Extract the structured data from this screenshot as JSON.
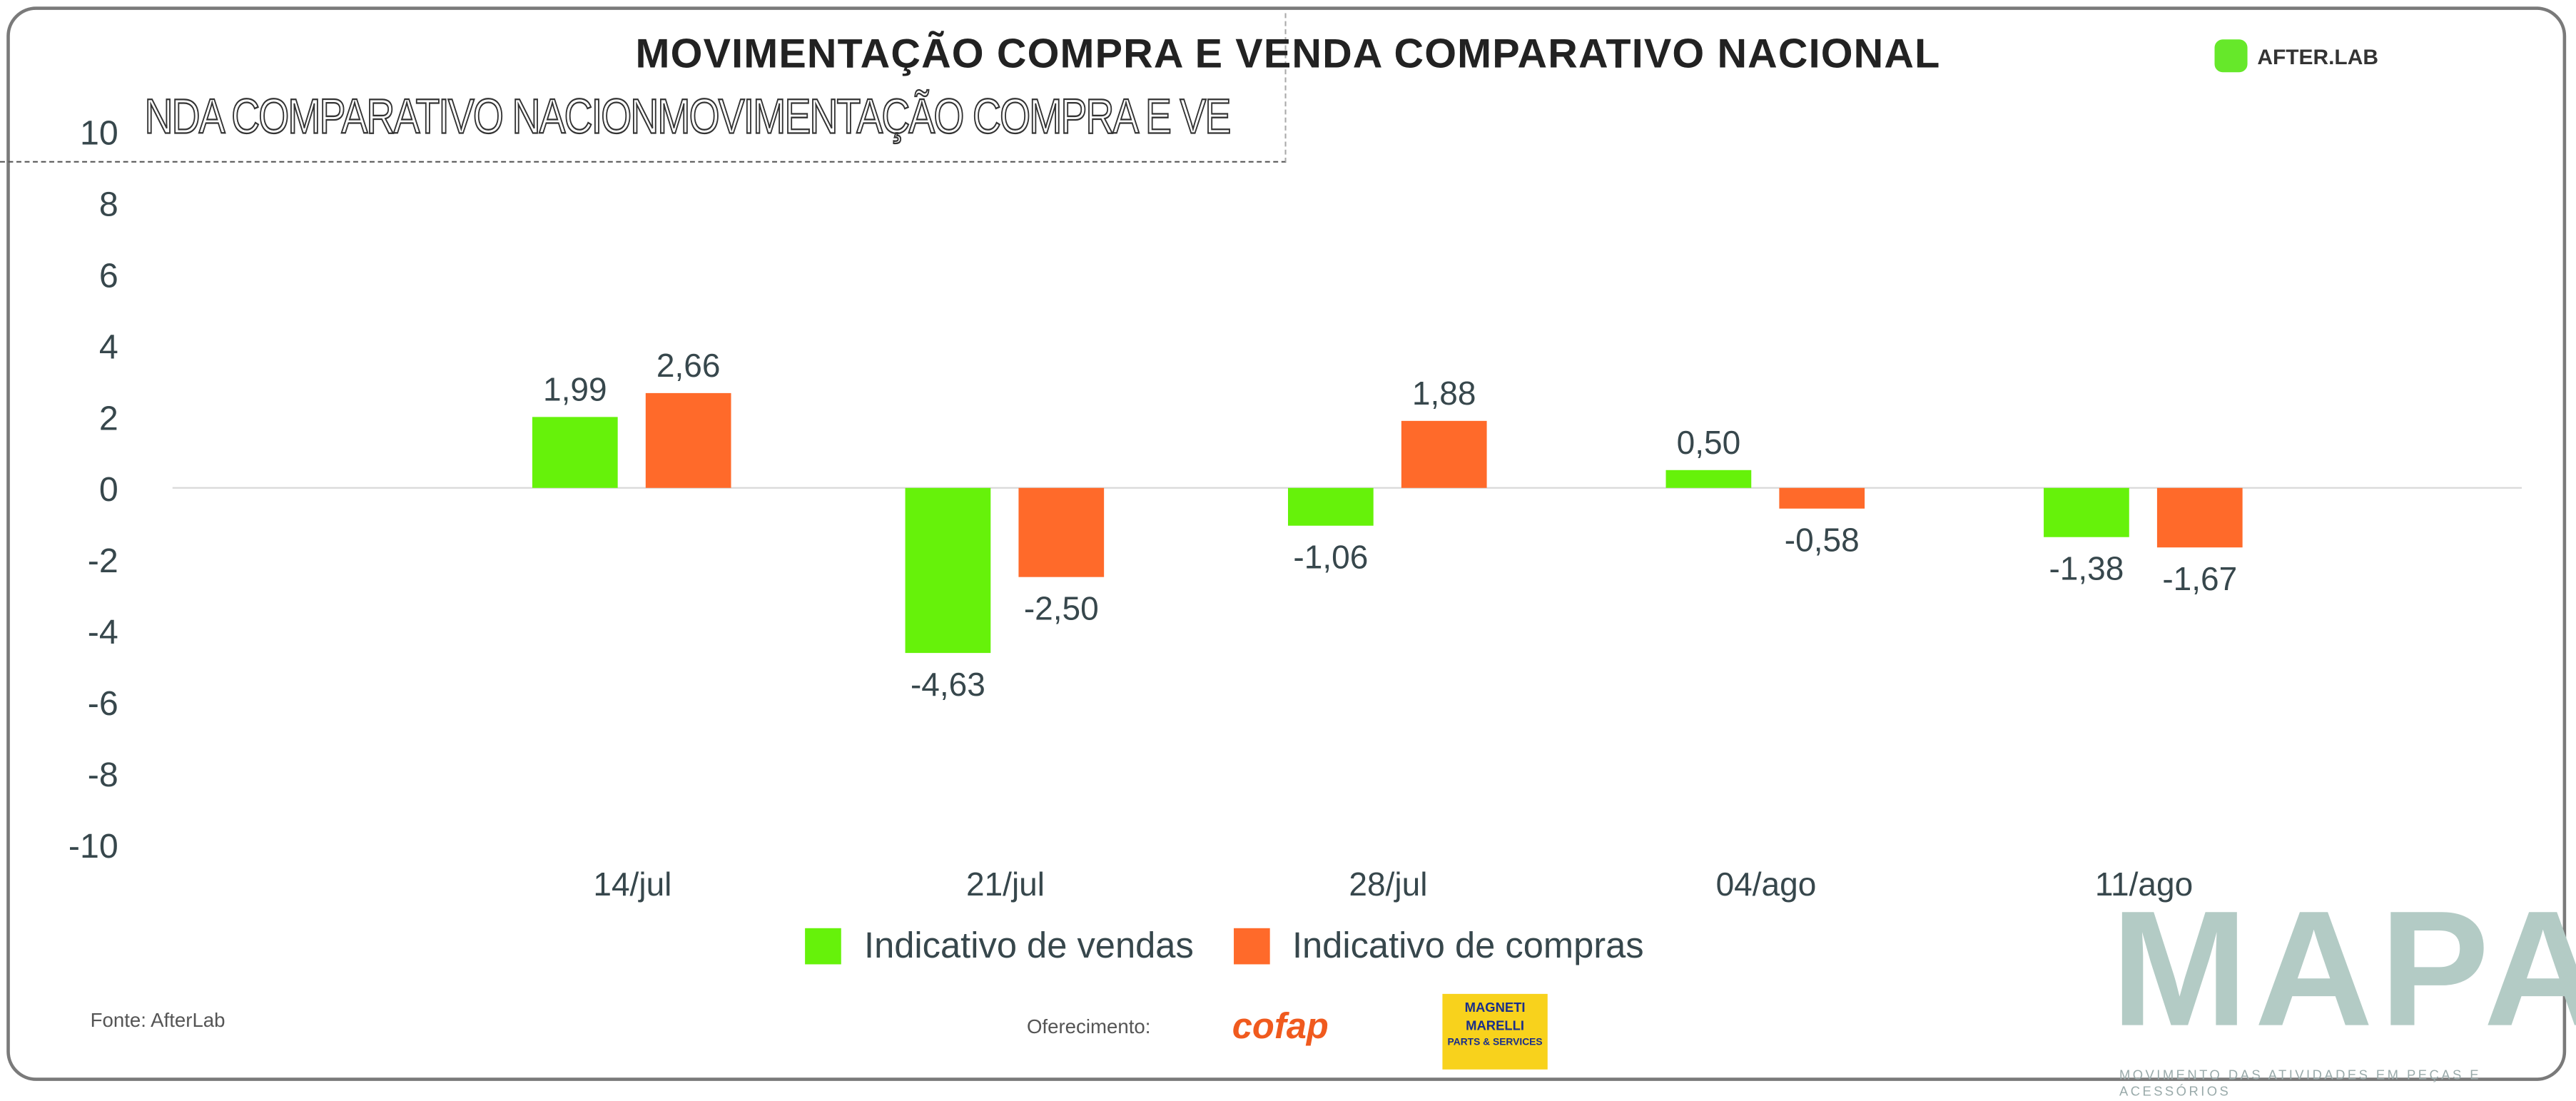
{
  "title": "MOVIMENTAÇÃO COMPRA E VENDA COMPARATIVO NACIONAL",
  "glitch_text": "NDA COMPARATIVO NACIONMOVIMENTAÇÃO COMPRA E VE",
  "brand": {
    "afterlab": "AFTER.LAB",
    "mapa": "MAPA",
    "mapa_subtitle": "MOVIMENTO DAS ATIVIDADES EM PEÇAS E ACESSÓRIOS"
  },
  "footer": {
    "source": "Fonte: AfterLab",
    "offered_by": "Oferecimento:",
    "sponsor1": "cofap",
    "sponsor2_line1": "MAGNETI",
    "sponsor2_line2": "MARELLI",
    "sponsor2_line3": "PARTS & SERVICES"
  },
  "colors": {
    "vendas": "#66f20a",
    "compras": "#ff6a2a"
  },
  "chart_data": {
    "type": "bar",
    "categories": [
      "14/jul",
      "21/jul",
      "28/jul",
      "04/ago",
      "11/ago"
    ],
    "series": [
      {
        "name": "Indicativo de vendas",
        "values": [
          1.99,
          -4.63,
          -1.06,
          0.5,
          -1.38
        ],
        "labels": [
          "1,99",
          "-4,63",
          "-1,06",
          "0,50",
          "-1,38"
        ]
      },
      {
        "name": "Indicativo de compras",
        "values": [
          2.66,
          -2.5,
          1.88,
          -0.58,
          -1.67
        ],
        "labels": [
          "2,66",
          "-2,50",
          "1,88",
          "-0,58",
          "-1,67"
        ]
      }
    ],
    "ylim": [
      -10,
      10
    ],
    "yticks": [
      "10",
      "8",
      "6",
      "4",
      "2",
      "0",
      "-2",
      "-4",
      "-6",
      "-8",
      "-10"
    ],
    "legend": "bottom",
    "grid": false
  }
}
